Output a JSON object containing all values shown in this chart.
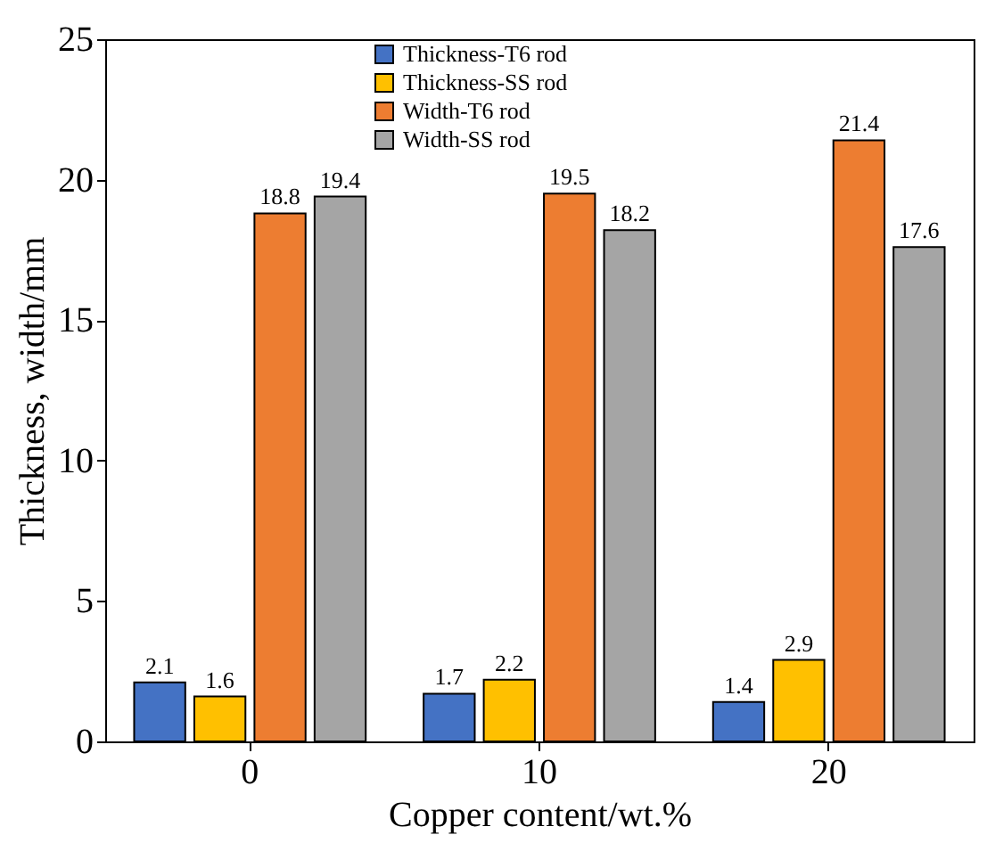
{
  "chart_data": {
    "type": "bar",
    "xlabel": "Copper content/wt.%",
    "ylabel": "Thickness, width/mm",
    "categories": [
      "0",
      "10",
      "20"
    ],
    "series": [
      {
        "name": "Thickness-T6 rod",
        "color": "#4472c4",
        "values": [
          2.1,
          1.7,
          1.4
        ]
      },
      {
        "name": "Thickness-SS rod",
        "color": "#ffc000",
        "values": [
          1.6,
          2.2,
          2.9
        ]
      },
      {
        "name": "Width-T6 rod",
        "color": "#ed7d31",
        "values": [
          18.8,
          19.5,
          21.4
        ]
      },
      {
        "name": "Width-SS rod",
        "color": "#a5a5a5",
        "values": [
          19.4,
          18.2,
          17.6
        ]
      }
    ],
    "ylim": [
      0,
      25
    ],
    "yticks": [
      0,
      5,
      10,
      15,
      20,
      25
    ],
    "data_labels": true,
    "legend": "top",
    "grid": false
  }
}
